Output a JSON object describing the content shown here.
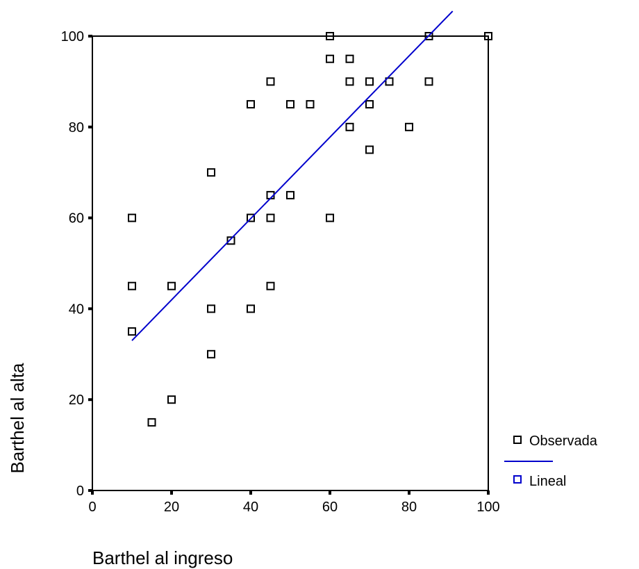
{
  "chart_data": {
    "type": "scatter",
    "title": "",
    "xlabel": "Barthel al ingreso",
    "ylabel": "Barthel al alta",
    "xlim": [
      0,
      100
    ],
    "ylim": [
      0,
      100
    ],
    "xticks": [
      0,
      20,
      40,
      60,
      80,
      100
    ],
    "yticks": [
      0,
      20,
      40,
      60,
      80,
      100
    ],
    "grid": false,
    "legend_position": "right",
    "series": [
      {
        "name": "Observada",
        "kind": "scatter",
        "marker": "open-square",
        "color": "#000000",
        "points": [
          [
            10,
            60
          ],
          [
            10,
            45
          ],
          [
            10,
            35
          ],
          [
            15,
            15
          ],
          [
            20,
            45
          ],
          [
            20,
            20
          ],
          [
            30,
            70
          ],
          [
            30,
            40
          ],
          [
            30,
            30
          ],
          [
            35,
            55
          ],
          [
            40,
            85
          ],
          [
            40,
            60
          ],
          [
            40,
            40
          ],
          [
            45,
            90
          ],
          [
            45,
            65
          ],
          [
            45,
            60
          ],
          [
            45,
            45
          ],
          [
            50,
            85
          ],
          [
            50,
            65
          ],
          [
            55,
            85
          ],
          [
            60,
            100
          ],
          [
            60,
            95
          ],
          [
            60,
            60
          ],
          [
            65,
            95
          ],
          [
            65,
            90
          ],
          [
            65,
            80
          ],
          [
            70,
            90
          ],
          [
            70,
            85
          ],
          [
            70,
            75
          ],
          [
            75,
            90
          ],
          [
            80,
            80
          ],
          [
            85,
            100
          ],
          [
            85,
            90
          ],
          [
            100,
            100
          ]
        ]
      },
      {
        "name": "Lineal",
        "kind": "line",
        "color": "#0000cc",
        "x": [
          10,
          91
        ],
        "y": [
          33,
          105.5
        ]
      }
    ]
  }
}
